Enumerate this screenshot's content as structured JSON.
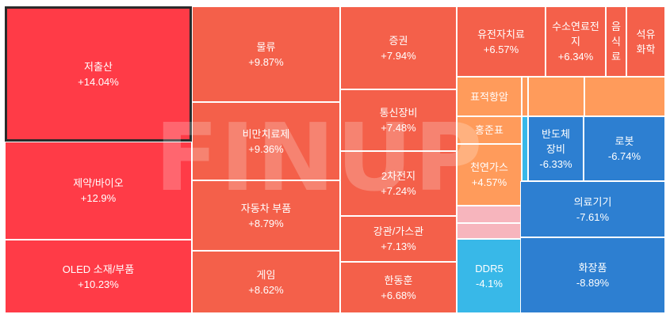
{
  "watermark": "FINUP",
  "colors": {
    "up_strong": "#ff3b47",
    "up": "#f4604a",
    "up_light": "#ff9b5b",
    "flat_pink": "#f7b5bd",
    "down_light": "#38b8e8",
    "down": "#2d7fd1"
  },
  "chart_data": {
    "type": "treemap",
    "title": "",
    "items": [
      {
        "name": "저출산",
        "change": "+14.04%",
        "color": "up_strong",
        "selected": true
      },
      {
        "name": "제약/바이오",
        "change": "+12.9%",
        "color": "up_strong"
      },
      {
        "name": "OLED 소재/부품",
        "change": "+10.23%",
        "color": "up_strong"
      },
      {
        "name": "물류",
        "change": "+9.87%",
        "color": "up"
      },
      {
        "name": "비만치료제",
        "change": "+9.36%",
        "color": "up"
      },
      {
        "name": "자동차 부품",
        "change": "+8.79%",
        "color": "up"
      },
      {
        "name": "게임",
        "change": "+8.62%",
        "color": "up"
      },
      {
        "name": "증권",
        "change": "+7.94%",
        "color": "up"
      },
      {
        "name": "통신장비",
        "change": "+7.48%",
        "color": "up"
      },
      {
        "name": "2차전지",
        "change": "+7.24%",
        "color": "up"
      },
      {
        "name": "강관/가스관",
        "change": "+7.13%",
        "color": "up"
      },
      {
        "name": "한동훈",
        "change": "+6.68%",
        "color": "up"
      },
      {
        "name": "유전자치료",
        "change": "+6.57%",
        "color": "up"
      },
      {
        "name": "수소연료전\n지",
        "change": "+6.34%",
        "color": "up"
      },
      {
        "name": "음\n식\n료",
        "change": "",
        "color": "up"
      },
      {
        "name": "석유\n화학",
        "change": "",
        "color": "up"
      },
      {
        "name": "표적항암",
        "change": "",
        "color": "up_light"
      },
      {
        "name": "",
        "change": "",
        "color": "up_light"
      },
      {
        "name": "",
        "change": "",
        "color": "up_light"
      },
      {
        "name": "",
        "change": "",
        "color": "up_light"
      },
      {
        "name": "",
        "change": "",
        "color": "up_light"
      },
      {
        "name": "홍준표",
        "change": "",
        "color": "up_light"
      },
      {
        "name": "",
        "change": "",
        "color": "down_light"
      },
      {
        "name": "천연가스",
        "change": "+4.57%",
        "color": "up_light"
      },
      {
        "name": "",
        "change": "",
        "color": "flat_pink"
      },
      {
        "name": "",
        "change": "",
        "color": "flat_pink"
      },
      {
        "name": "DDR5",
        "change": "-4.1%",
        "color": "down_light"
      },
      {
        "name": "반도체\n장비",
        "change": "-6.33%",
        "color": "down"
      },
      {
        "name": "로봇",
        "change": "-6.74%",
        "color": "down"
      },
      {
        "name": "의료기기",
        "change": "-7.61%",
        "color": "down"
      },
      {
        "name": "화장품",
        "change": "-8.89%",
        "color": "down"
      }
    ]
  }
}
